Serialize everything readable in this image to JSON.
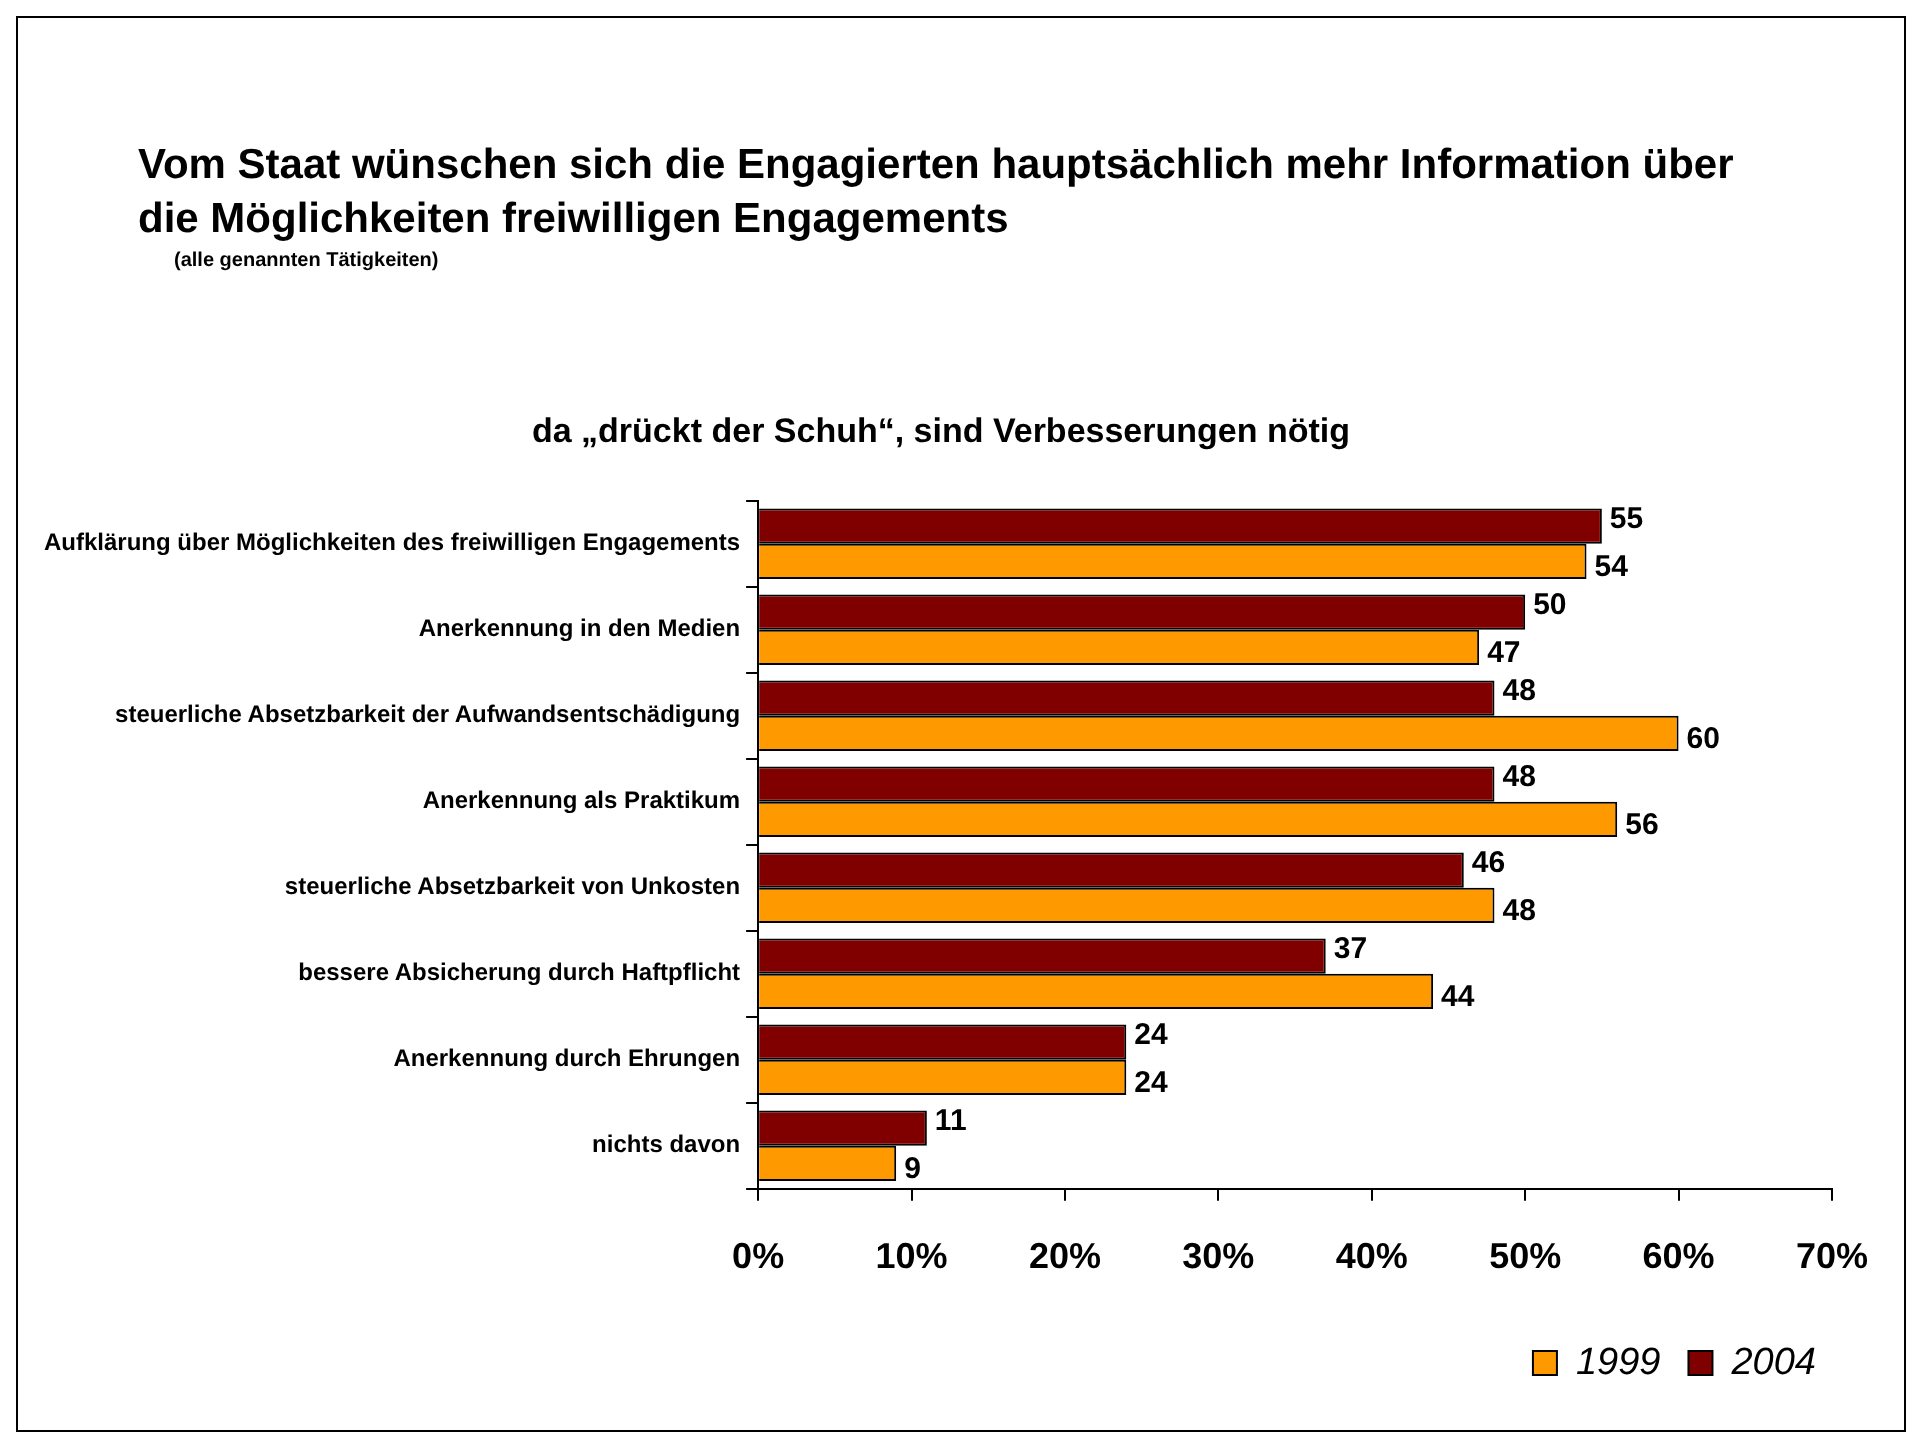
{
  "chart_data": {
    "type": "bar",
    "orientation": "horizontal",
    "title": "Vom Staat wünschen sich die Engagierten hauptsächlich mehr Information über die Möglichkeiten freiwilligen Engagements",
    "subtitle": "(alle genannten Tätigkeiten)",
    "annotations": [
      "da „drückt der Schuh“, sind Verbesserungen nötig"
    ],
    "categories": [
      "Aufklärung über Möglichkeiten des freiwilligen Engagements",
      "Anerkennung in den Medien",
      "steuerliche Absetzbarkeit der Aufwandsentschädigung",
      "Anerkennung als Praktikum",
      "steuerliche Absetzbarkeit von Unkosten",
      "bessere Absicherung durch Haftpflicht",
      "Anerkennung durch Ehrungen",
      "nichts davon"
    ],
    "series": [
      {
        "name": "2004",
        "color": "#800000",
        "values": [
          55,
          50,
          48,
          48,
          46,
          37,
          24,
          11
        ]
      },
      {
        "name": "1999",
        "color": "#ff9900",
        "values": [
          54,
          47,
          60,
          56,
          48,
          44,
          24,
          9
        ]
      }
    ],
    "xlim": [
      0,
      70
    ],
    "xticks": [
      {
        "value": 0,
        "label": "0%"
      },
      {
        "value": 10,
        "label": "10%"
      },
      {
        "value": 20,
        "label": "20%"
      },
      {
        "value": 30,
        "label": "30%"
      },
      {
        "value": 40,
        "label": "40%"
      },
      {
        "value": 50,
        "label": "50%"
      },
      {
        "value": 60,
        "label": "60%"
      },
      {
        "value": 70,
        "label": "70%"
      }
    ],
    "data_labels": true,
    "grid": false,
    "legend": "bottom right"
  }
}
